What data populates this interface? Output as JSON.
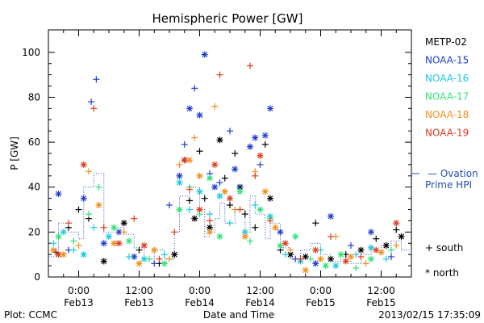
{
  "chart_data": {
    "type": "scatter",
    "title": "Hemispheric Power [GW]",
    "xlabel": "Date and Time",
    "ylabel": "P [GW]",
    "ylim": [
      0,
      110
    ],
    "y_ticks": [
      0,
      20,
      40,
      60,
      80,
      100
    ],
    "x_tick_labels": [
      {
        "time": "0:00",
        "date": "Feb13"
      },
      {
        "time": "12:00",
        "date": "Feb13"
      },
      {
        "time": "0:00",
        "date": "Feb14"
      },
      {
        "time": "12:00",
        "date": "Feb14"
      },
      {
        "time": "0:00",
        "date": "Feb15"
      },
      {
        "time": "12:00",
        "date": "Feb15"
      }
    ],
    "x_tick_hours": [
      0,
      12,
      24,
      36,
      48,
      60
    ],
    "xlim_hours": [
      -6,
      66
    ],
    "legend": {
      "placement": "right",
      "entries": [
        {
          "name": "METP-02",
          "color": "#000000"
        },
        {
          "name": "NOAA-15",
          "color": "#1f3fd0"
        },
        {
          "name": "NOAA-16",
          "color": "#22c8e0"
        },
        {
          "name": "NOAA-17",
          "color": "#33e07a"
        },
        {
          "name": "NOAA-18",
          "color": "#f0901e"
        },
        {
          "name": "NOAA-19",
          "color": "#e03a1e"
        }
      ],
      "ovation_label_1": "— Ovation",
      "ovation_label_2": "Prime HPI",
      "ovation_color": "#1f4fb0",
      "south_label": "+ south",
      "north_label": "* north"
    },
    "footer_left": "Plot: CCMC",
    "footer_right": "2013/02/15 17:35:09",
    "series": [
      {
        "name": "METP-02",
        "color": "#000000",
        "points": [
          [
            -4.5,
            11,
            "s"
          ],
          [
            -2,
            22,
            "s"
          ],
          [
            0,
            30,
            "s"
          ],
          [
            2,
            26,
            "s"
          ],
          [
            5,
            7,
            "n"
          ],
          [
            9,
            24,
            "n"
          ],
          [
            12,
            12,
            "s"
          ],
          [
            16,
            6,
            "s"
          ],
          [
            19,
            10,
            "n"
          ],
          [
            21,
            52,
            "n"
          ],
          [
            22,
            34,
            "s"
          ],
          [
            23,
            26,
            "n"
          ],
          [
            24,
            56,
            "s"
          ],
          [
            25,
            35,
            "s"
          ],
          [
            26,
            22,
            "n"
          ],
          [
            28,
            61,
            "n"
          ],
          [
            29,
            44,
            "s"
          ],
          [
            30,
            32,
            "s"
          ],
          [
            31,
            55,
            "s"
          ],
          [
            32,
            40,
            "n"
          ],
          [
            33,
            28,
            "s"
          ],
          [
            35,
            22,
            "s"
          ],
          [
            37,
            59,
            "s"
          ],
          [
            38,
            35,
            "n"
          ],
          [
            40,
            12,
            "s"
          ],
          [
            42,
            10,
            "n"
          ],
          [
            45,
            9,
            "n"
          ],
          [
            47,
            24,
            "s"
          ],
          [
            50,
            8,
            "n"
          ],
          [
            53,
            10,
            "s"
          ],
          [
            56,
            12,
            "n"
          ],
          [
            59,
            17,
            "s"
          ],
          [
            61,
            14,
            "n"
          ],
          [
            63,
            21,
            "s"
          ],
          [
            64,
            18,
            "n"
          ]
        ]
      },
      {
        "name": "NOAA-15",
        "color": "#1f3fd0",
        "points": [
          [
            -4,
            37,
            "n"
          ],
          [
            -2,
            12,
            "s"
          ],
          [
            1,
            35,
            "n"
          ],
          [
            2.5,
            78,
            "s"
          ],
          [
            3.5,
            88,
            "s"
          ],
          [
            5,
            15,
            "n"
          ],
          [
            8,
            20,
            "n"
          ],
          [
            11,
            9,
            "n"
          ],
          [
            15,
            6,
            "s"
          ],
          [
            18,
            32,
            "s"
          ],
          [
            20,
            45,
            "n"
          ],
          [
            21,
            59,
            "s"
          ],
          [
            22,
            75,
            "n"
          ],
          [
            23,
            84,
            "s"
          ],
          [
            24,
            72,
            "n"
          ],
          [
            25,
            99,
            "n"
          ],
          [
            26,
            46,
            "s"
          ],
          [
            27,
            40,
            "n"
          ],
          [
            28,
            42,
            "s"
          ],
          [
            30,
            65,
            "s"
          ],
          [
            31,
            48,
            "n"
          ],
          [
            32,
            40,
            "s"
          ],
          [
            34,
            58,
            "n"
          ],
          [
            35,
            62,
            "n"
          ],
          [
            36,
            50,
            "s"
          ],
          [
            37,
            63,
            "n"
          ],
          [
            38,
            75,
            "n"
          ],
          [
            40,
            20,
            "n"
          ],
          [
            43,
            8,
            "s"
          ],
          [
            47,
            6,
            "n"
          ],
          [
            50,
            27,
            "n"
          ],
          [
            54,
            14,
            "s"
          ],
          [
            58,
            20,
            "n"
          ],
          [
            62,
            9,
            "s"
          ]
        ]
      },
      {
        "name": "NOAA-16",
        "color": "#22c8e0",
        "points": [
          [
            -5,
            15,
            "s"
          ],
          [
            -3,
            20,
            "n"
          ],
          [
            -1,
            12,
            "s"
          ],
          [
            1,
            10,
            "n"
          ],
          [
            3,
            22,
            "s"
          ],
          [
            6,
            18,
            "n"
          ],
          [
            10,
            9,
            "s"
          ],
          [
            13,
            8,
            "n"
          ],
          [
            17,
            10,
            "s"
          ],
          [
            20,
            42,
            "n"
          ],
          [
            22,
            30,
            "s"
          ],
          [
            24,
            38,
            "n"
          ],
          [
            26,
            28,
            "s"
          ],
          [
            28,
            36,
            "n"
          ],
          [
            30,
            24,
            "s"
          ],
          [
            33,
            20,
            "n"
          ],
          [
            35,
            32,
            "s"
          ],
          [
            38,
            27,
            "n"
          ],
          [
            41,
            10,
            "s"
          ],
          [
            44,
            7,
            "n"
          ],
          [
            48,
            12,
            "s"
          ],
          [
            51,
            5,
            "n"
          ],
          [
            55,
            10,
            "s"
          ],
          [
            58,
            13,
            "n"
          ],
          [
            61,
            8,
            "s"
          ]
        ]
      },
      {
        "name": "NOAA-17",
        "color": "#33e07a",
        "points": [
          [
            -4,
            18,
            "n"
          ],
          [
            -1,
            16,
            "s"
          ],
          [
            2,
            28,
            "s"
          ],
          [
            4,
            40,
            "s"
          ],
          [
            7,
            22,
            "n"
          ],
          [
            10,
            16,
            "n"
          ],
          [
            14,
            8,
            "s"
          ],
          [
            17,
            6,
            "n"
          ],
          [
            20,
            30,
            "n"
          ],
          [
            22,
            40,
            "s"
          ],
          [
            24,
            28,
            "s"
          ],
          [
            26,
            44,
            "n"
          ],
          [
            28,
            18,
            "n"
          ],
          [
            30,
            35,
            "s"
          ],
          [
            32,
            38,
            "n"
          ],
          [
            34,
            16,
            "s"
          ],
          [
            36,
            30,
            "n"
          ],
          [
            38,
            26,
            "s"
          ],
          [
            40,
            14,
            "n"
          ],
          [
            43,
            18,
            "n"
          ],
          [
            46,
            8,
            "s"
          ],
          [
            49,
            5,
            "n"
          ],
          [
            52,
            10,
            "n"
          ],
          [
            55,
            4,
            "s"
          ],
          [
            58,
            8,
            "n"
          ],
          [
            62,
            12,
            "s"
          ]
        ]
      },
      {
        "name": "NOAA-18",
        "color": "#f0901e",
        "points": [
          [
            -5,
            12,
            "n"
          ],
          [
            -3,
            10,
            "n"
          ],
          [
            0,
            14,
            "s"
          ],
          [
            2,
            47,
            "s"
          ],
          [
            4,
            32,
            "n"
          ],
          [
            7,
            15,
            "n"
          ],
          [
            9,
            20,
            "s"
          ],
          [
            12,
            6,
            "n"
          ],
          [
            15,
            12,
            "n"
          ],
          [
            18,
            8,
            "s"
          ],
          [
            20,
            50,
            "s"
          ],
          [
            22,
            52,
            "n"
          ],
          [
            23,
            62,
            "s"
          ],
          [
            24,
            45,
            "n"
          ],
          [
            26,
            20,
            "n"
          ],
          [
            27,
            76,
            "s"
          ],
          [
            29,
            38,
            "n"
          ],
          [
            31,
            30,
            "s"
          ],
          [
            33,
            18,
            "n"
          ],
          [
            35,
            47,
            "s"
          ],
          [
            37,
            38,
            "n"
          ],
          [
            39,
            22,
            "n"
          ],
          [
            42,
            12,
            "s"
          ],
          [
            45,
            3,
            "n"
          ],
          [
            48,
            8,
            "n"
          ],
          [
            51,
            18,
            "s"
          ],
          [
            54,
            9,
            "n"
          ],
          [
            57,
            6,
            "s"
          ],
          [
            60,
            11,
            "n"
          ],
          [
            63,
            14,
            "s"
          ]
        ]
      },
      {
        "name": "NOAA-19",
        "color": "#e03a1e",
        "points": [
          [
            -4,
            10,
            "n"
          ],
          [
            -2,
            24,
            "s"
          ],
          [
            1,
            50,
            "n"
          ],
          [
            3,
            75,
            "s"
          ],
          [
            5,
            22,
            "s"
          ],
          [
            8,
            15,
            "n"
          ],
          [
            11,
            26,
            "s"
          ],
          [
            13,
            14,
            "n"
          ],
          [
            16,
            8,
            "s"
          ],
          [
            19,
            20,
            "s"
          ],
          [
            21,
            52,
            "n"
          ],
          [
            22,
            39,
            "s"
          ],
          [
            24,
            30,
            "n"
          ],
          [
            26,
            25,
            "s"
          ],
          [
            27,
            50,
            "n"
          ],
          [
            28,
            90,
            "s"
          ],
          [
            30,
            35,
            "n"
          ],
          [
            32,
            30,
            "s"
          ],
          [
            34,
            94,
            "s"
          ],
          [
            35,
            45,
            "s"
          ],
          [
            36,
            54,
            "n"
          ],
          [
            38,
            25,
            "s"
          ],
          [
            41,
            15,
            "n"
          ],
          [
            44,
            8,
            "s"
          ],
          [
            47,
            12,
            "n"
          ],
          [
            50,
            18,
            "s"
          ],
          [
            53,
            7,
            "n"
          ],
          [
            56,
            9,
            "s"
          ],
          [
            59,
            12,
            "n"
          ],
          [
            63,
            24,
            "n"
          ]
        ]
      }
    ],
    "ovation_steps": [
      [
        -6,
        9
      ],
      [
        -4,
        24
      ],
      [
        -2,
        20
      ],
      [
        0,
        17
      ],
      [
        1,
        40
      ],
      [
        3,
        46
      ],
      [
        5,
        20
      ],
      [
        7,
        22
      ],
      [
        9,
        19
      ],
      [
        11,
        13
      ],
      [
        13,
        8
      ],
      [
        15,
        12
      ],
      [
        17,
        8
      ],
      [
        19,
        20
      ],
      [
        20,
        36
      ],
      [
        22,
        40
      ],
      [
        24,
        30
      ],
      [
        25,
        18
      ],
      [
        26,
        20
      ],
      [
        27,
        26
      ],
      [
        28,
        33
      ],
      [
        29,
        24
      ],
      [
        31,
        30
      ],
      [
        33,
        20
      ],
      [
        34,
        36
      ],
      [
        35,
        28
      ],
      [
        37,
        17
      ],
      [
        38,
        24
      ],
      [
        40,
        13
      ],
      [
        42,
        8
      ],
      [
        44,
        12
      ],
      [
        46,
        15
      ],
      [
        48,
        10
      ],
      [
        50,
        7
      ],
      [
        52,
        9
      ],
      [
        54,
        6
      ],
      [
        56,
        10
      ],
      [
        58,
        12
      ],
      [
        60,
        14
      ],
      [
        62,
        16
      ],
      [
        64,
        12
      ],
      [
        66,
        10
      ]
    ]
  }
}
